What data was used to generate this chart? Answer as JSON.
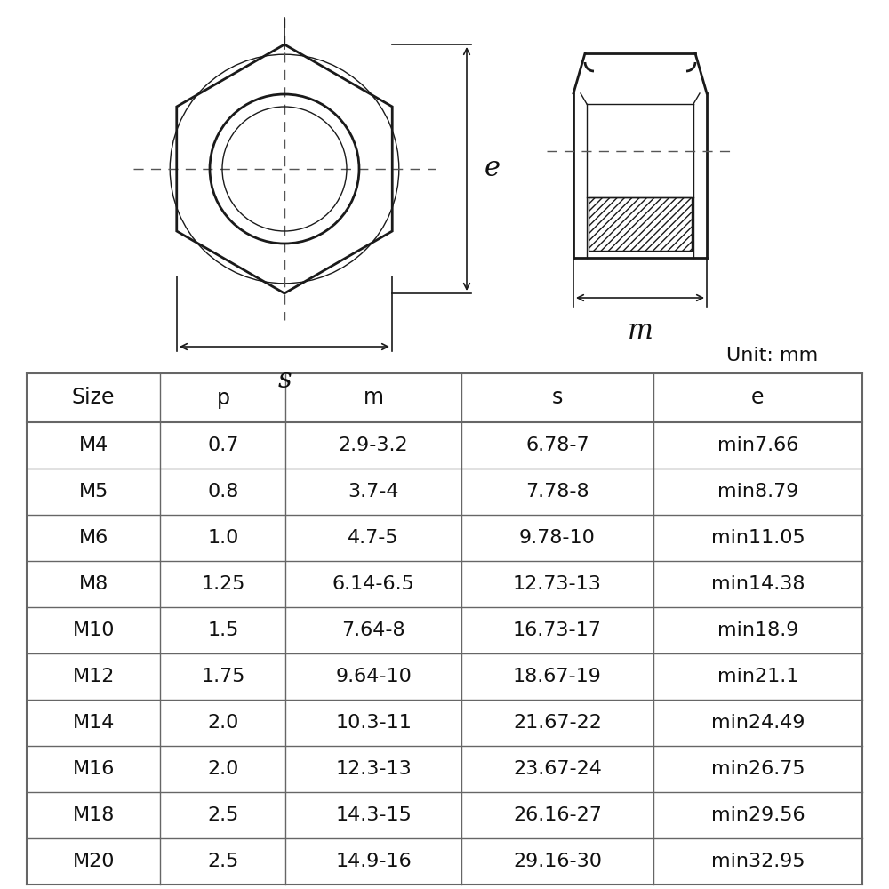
{
  "table_headers": [
    "Size",
    "p",
    "m",
    "s",
    "e"
  ],
  "table_rows": [
    [
      "M4",
      "0.7",
      "2.9-3.2",
      "6.78-7",
      "min7.66"
    ],
    [
      "M5",
      "0.8",
      "3.7-4",
      "7.78-8",
      "min8.79"
    ],
    [
      "M6",
      "1.0",
      "4.7-5",
      "9.78-10",
      "min11.05"
    ],
    [
      "M8",
      "1.25",
      "6.14-6.5",
      "12.73-13",
      "min14.38"
    ],
    [
      "M10",
      "1.5",
      "7.64-8",
      "16.73-17",
      "min18.9"
    ],
    [
      "M12",
      "1.75",
      "9.64-10",
      "18.67-19",
      "min21.1"
    ],
    [
      "M14",
      "2.0",
      "10.3-11",
      "21.67-22",
      "min24.49"
    ],
    [
      "M16",
      "2.0",
      "12.3-13",
      "23.67-24",
      "min26.75"
    ],
    [
      "M18",
      "2.5",
      "14.3-15",
      "26.16-27",
      "min29.56"
    ],
    [
      "M20",
      "2.5",
      "14.9-16",
      "29.16-30",
      "min32.95"
    ]
  ],
  "unit_label": "Unit: mm",
  "bg_color": "#ffffff",
  "line_color": "#1a1a1a",
  "table_line_color": "#666666",
  "text_color": "#111111"
}
